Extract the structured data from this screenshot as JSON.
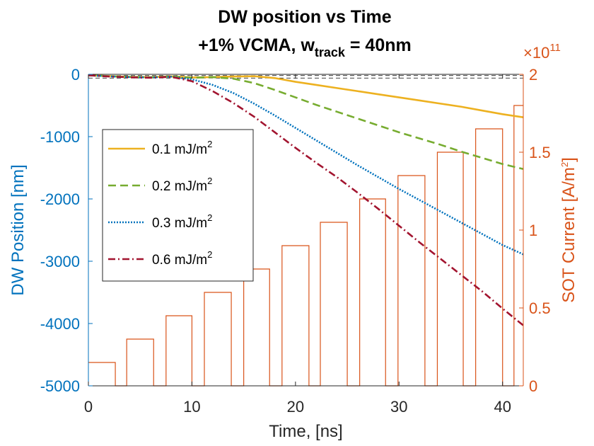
{
  "chart_data": {
    "type": "line",
    "title": "DW position vs Time",
    "subtitle_prefix": "+1% VCMA, w",
    "subtitle_subscript": "track",
    "subtitle_suffix": " = 40nm",
    "xlabel": "Time, [ns]",
    "ylabel_left": "DW Position [nm]",
    "ylabel_right": "SOT Current [A/m",
    "ylabel_right_sup": "2",
    "ylabel_right_close": "]",
    "right_exponent_base": "×10",
    "right_exponent_power": "11",
    "xlim": [
      0,
      42
    ],
    "ylim_left": [
      -5000,
      0
    ],
    "ylim_right": [
      0,
      2
    ],
    "xticks": [
      "0",
      "10",
      "20",
      "30",
      "40"
    ],
    "yticks_left": [
      "0",
      "-1000",
      "-2000",
      "-3000",
      "-4000",
      "-5000"
    ],
    "yticks_right": [
      "0",
      "0.5",
      "1",
      "1.5",
      "2"
    ],
    "legend_position": "center-left",
    "colors": {
      "left_axis": "#0072BD",
      "right_axis": "#D95319",
      "dashed_reference": "#000000"
    },
    "series": [
      {
        "name": "0.1 mJ/m",
        "name_sup": "2",
        "color": "#EDB120",
        "dash": "solid",
        "x": [
          0,
          2,
          4,
          6,
          8,
          10,
          12,
          14,
          16,
          18,
          20,
          22,
          24,
          26,
          28,
          30,
          32,
          34,
          36,
          38,
          40,
          42
        ],
        "y": [
          -15,
          -28,
          -40,
          -45,
          -32,
          -50,
          -45,
          -35,
          -30,
          -60,
          -120,
          -170,
          -220,
          -270,
          -320,
          -370,
          -420,
          -470,
          -520,
          -580,
          -640,
          -690
        ]
      },
      {
        "name": "0.2 mJ/m",
        "name_sup": "2",
        "color": "#77AC30",
        "dash": "dashed",
        "x": [
          0,
          2,
          4,
          6,
          8,
          10,
          12,
          14,
          16,
          18,
          20,
          22,
          24,
          26,
          28,
          30,
          32,
          34,
          36,
          38,
          40,
          42
        ],
        "y": [
          -15,
          -30,
          -42,
          -48,
          -35,
          -55,
          -45,
          -70,
          -140,
          -250,
          -370,
          -490,
          -600,
          -710,
          -820,
          -930,
          -1030,
          -1130,
          -1240,
          -1340,
          -1440,
          -1520
        ]
      },
      {
        "name": "0.3 mJ/m",
        "name_sup": "2",
        "color": "#0072BD",
        "dash": "dotted",
        "x": [
          0,
          2,
          4,
          6,
          8,
          10,
          12,
          14,
          16,
          18,
          20,
          22,
          24,
          26,
          28,
          30,
          32,
          34,
          36,
          38,
          40,
          42
        ],
        "y": [
          -15,
          -32,
          -45,
          -50,
          -38,
          -80,
          -170,
          -300,
          -470,
          -660,
          -860,
          -1060,
          -1260,
          -1460,
          -1650,
          -1840,
          -2020,
          -2200,
          -2380,
          -2560,
          -2740,
          -2890
        ]
      },
      {
        "name": "0.6 mJ/m",
        "name_sup": "2",
        "color": "#A2142F",
        "dash": "dashdot",
        "x": [
          0,
          2,
          4,
          6,
          8,
          10,
          12,
          14,
          16,
          18,
          20,
          22,
          24,
          26,
          28,
          30,
          32,
          34,
          36,
          38,
          40,
          42
        ],
        "y": [
          -15,
          -35,
          -48,
          -55,
          -40,
          -110,
          -270,
          -460,
          -680,
          -930,
          -1180,
          -1420,
          -1650,
          -1900,
          -2160,
          -2430,
          -2700,
          -2960,
          -3220,
          -3480,
          -3760,
          -4030
        ]
      }
    ],
    "sot_current_pulses": {
      "color": "#D95319",
      "units_e11": true,
      "pulses": [
        {
          "t0": 0.0,
          "t1": 2.6,
          "v": 0.15
        },
        {
          "t0": 3.7,
          "t1": 6.3,
          "v": 0.3
        },
        {
          "t0": 7.5,
          "t1": 10.0,
          "v": 0.45
        },
        {
          "t0": 11.2,
          "t1": 13.8,
          "v": 0.6
        },
        {
          "t0": 15.0,
          "t1": 17.5,
          "v": 0.75
        },
        {
          "t0": 18.7,
          "t1": 21.3,
          "v": 0.9
        },
        {
          "t0": 22.4,
          "t1": 25.0,
          "v": 1.05
        },
        {
          "t0": 26.2,
          "t1": 28.7,
          "v": 1.2
        },
        {
          "t0": 29.9,
          "t1": 32.5,
          "v": 1.35
        },
        {
          "t0": 33.7,
          "t1": 36.2,
          "v": 1.5
        },
        {
          "t0": 37.4,
          "t1": 40.0,
          "v": 1.65
        },
        {
          "t0": 41.1,
          "t1": 42.0,
          "v": 1.8
        }
      ]
    },
    "reference_lines_y": [
      -20,
      -60
    ]
  }
}
